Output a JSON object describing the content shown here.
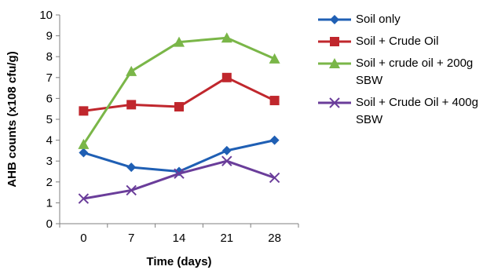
{
  "chart_data": {
    "type": "line",
    "title": "",
    "xlabel": "Time (days)",
    "ylabel": "AHB counts (x108 cfu/g)",
    "categories": [
      "0",
      "7",
      "14",
      "21",
      "28"
    ],
    "ylim": [
      0,
      10
    ],
    "yticks": [
      0,
      1,
      2,
      3,
      4,
      5,
      6,
      7,
      8,
      9,
      10
    ],
    "grid": false,
    "legend_position": "right",
    "series": [
      {
        "name": "Soil only",
        "color": "#1f5fb4",
        "marker": "diamond",
        "values": [
          3.4,
          2.7,
          2.5,
          3.5,
          4.0
        ]
      },
      {
        "name": "Soil + Crude Oil",
        "color": "#c0272d",
        "marker": "square",
        "values": [
          5.4,
          5.7,
          5.6,
          7.0,
          5.9
        ]
      },
      {
        "name": "Soil + crude oil + 200g SBW",
        "color": "#7ab648",
        "marker": "triangle",
        "values": [
          3.8,
          7.3,
          8.7,
          8.9,
          7.9
        ]
      },
      {
        "name": "Soil + Crude Oil + 400g SBW",
        "color": "#6a3d9a",
        "marker": "x",
        "values": [
          1.2,
          1.6,
          2.4,
          3.0,
          2.2
        ]
      }
    ]
  }
}
